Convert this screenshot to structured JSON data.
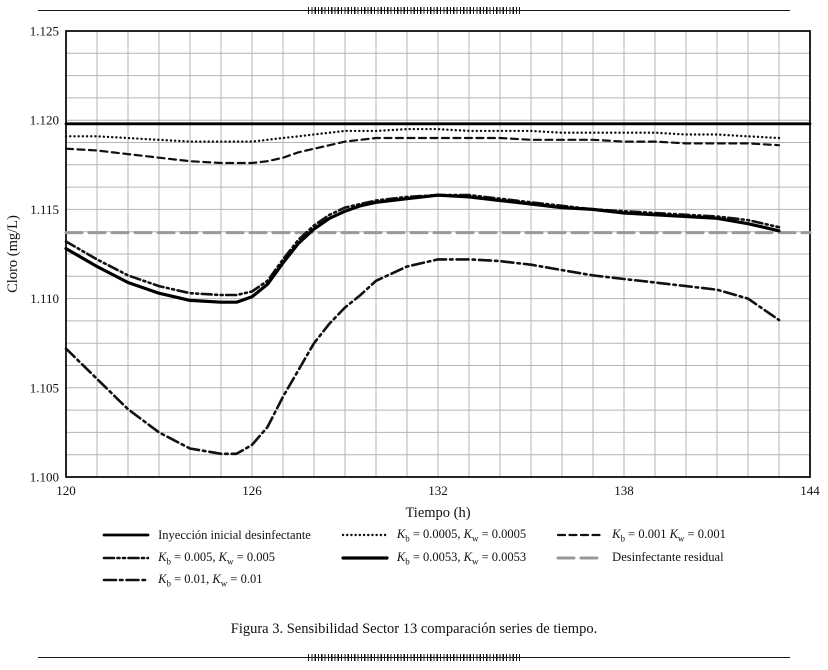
{
  "page": {
    "caption": "Figura 3. Sensibilidad Sector 13 comparación series de tiempo."
  },
  "chart_data": {
    "type": "line",
    "title": "",
    "xlabel": "Tiempo (h)",
    "ylabel": "Cloro (mg/L)",
    "xlim": [
      120,
      144
    ],
    "ylim": [
      1.1,
      1.125
    ],
    "xticks": [
      120,
      126,
      132,
      138,
      144
    ],
    "yticks": [
      1.1,
      1.105,
      1.11,
      1.115,
      1.12,
      1.125
    ],
    "ytick_labels": [
      "1.100",
      "1.105",
      "1.110",
      "1.115",
      "1.120",
      "1.125"
    ],
    "minor_x_step": 1,
    "minor_y_step": 0.00125,
    "grid": true,
    "grid_color": "#b4b4b4",
    "legend_position": "bottom",
    "legend_order": [
      0,
      1,
      2,
      3,
      4,
      6,
      5
    ],
    "x": [
      120,
      121,
      122,
      123,
      124,
      125,
      125.5,
      126,
      126.5,
      127,
      127.5,
      128,
      128.5,
      129,
      129.5,
      130,
      131,
      132,
      133,
      134,
      135,
      136,
      137,
      138,
      139,
      140,
      141,
      142,
      143
    ],
    "series": [
      {
        "name": "inyeccion-inicial-desinfectante",
        "label": "Inyección inicial desinfectante",
        "style": "solid",
        "width": 2.8,
        "color": "#000000",
        "constant": 1.1198
      },
      {
        "name": "kb-0.0005-kw-0.0005",
        "label": "K_b = 0.0005, K_w = 0.0005",
        "style": "dotted",
        "width": 2.4,
        "color": "#111111",
        "values": [
          1.1191,
          1.1191,
          1.119,
          1.1189,
          1.1188,
          1.1188,
          1.1188,
          1.1188,
          1.1189,
          1.119,
          1.1191,
          1.1192,
          1.1193,
          1.1194,
          1.1194,
          1.1194,
          1.1195,
          1.1195,
          1.1194,
          1.1194,
          1.1194,
          1.1193,
          1.1193,
          1.1193,
          1.1193,
          1.1192,
          1.1192,
          1.1191,
          1.119
        ]
      },
      {
        "name": "kb-0.001-kw-0.001",
        "label": "K_b = 0.001 K_w = 0.001",
        "style": "dashed",
        "width": 2.2,
        "color": "#111111",
        "values": [
          1.1184,
          1.1183,
          1.1181,
          1.1179,
          1.1177,
          1.1176,
          1.1176,
          1.1176,
          1.1177,
          1.1179,
          1.1182,
          1.1184,
          1.1186,
          1.1188,
          1.1189,
          1.119,
          1.119,
          1.119,
          1.119,
          1.119,
          1.1189,
          1.1189,
          1.1189,
          1.1188,
          1.1188,
          1.1187,
          1.1187,
          1.1187,
          1.1186
        ]
      },
      {
        "name": "kb-0.005-kw-0.005",
        "label": "K_b = 0.005, K_w = 0.005",
        "style": "dashdotdot",
        "width": 2.6,
        "color": "#111111",
        "values": [
          1.1132,
          1.1122,
          1.1113,
          1.1107,
          1.1103,
          1.1102,
          1.1102,
          1.1104,
          1.111,
          1.1122,
          1.1133,
          1.1141,
          1.1147,
          1.1151,
          1.1153,
          1.1155,
          1.1157,
          1.1158,
          1.1158,
          1.1156,
          1.1154,
          1.1152,
          1.115,
          1.1149,
          1.1148,
          1.1147,
          1.1146,
          1.1144,
          1.114
        ]
      },
      {
        "name": "kb-0.0053-kw-0.0053",
        "label": "K_b = 0.0053, K_w = 0.0053",
        "style": "solid",
        "width": 3.2,
        "color": "#000000",
        "values": [
          1.1128,
          1.1118,
          1.1109,
          1.1103,
          1.1099,
          1.1098,
          1.1098,
          1.1101,
          1.1108,
          1.112,
          1.1131,
          1.1139,
          1.1145,
          1.1149,
          1.1152,
          1.1154,
          1.1156,
          1.1158,
          1.1157,
          1.1155,
          1.1153,
          1.1151,
          1.115,
          1.1148,
          1.1147,
          1.1146,
          1.1145,
          1.1142,
          1.1138
        ]
      },
      {
        "name": "kb-0.01-kw-0.01",
        "label": "K_b = 0.01, K_w = 0.01",
        "style": "dashdot",
        "width": 2.6,
        "color": "#111111",
        "values": [
          1.1072,
          1.1055,
          1.1038,
          1.1025,
          1.1016,
          1.1013,
          1.1013,
          1.1018,
          1.1028,
          1.1045,
          1.106,
          1.1075,
          1.1086,
          1.1095,
          1.1102,
          1.111,
          1.1118,
          1.1122,
          1.1122,
          1.1121,
          1.1119,
          1.1116,
          1.1113,
          1.1111,
          1.1109,
          1.1107,
          1.1105,
          1.11,
          1.1088
        ]
      },
      {
        "name": "desinfectante-residual",
        "label": "Desinfectante residual",
        "style": "dash-long",
        "width": 3,
        "color": "#999999",
        "constant": 1.1137,
        "z": -1
      }
    ]
  }
}
